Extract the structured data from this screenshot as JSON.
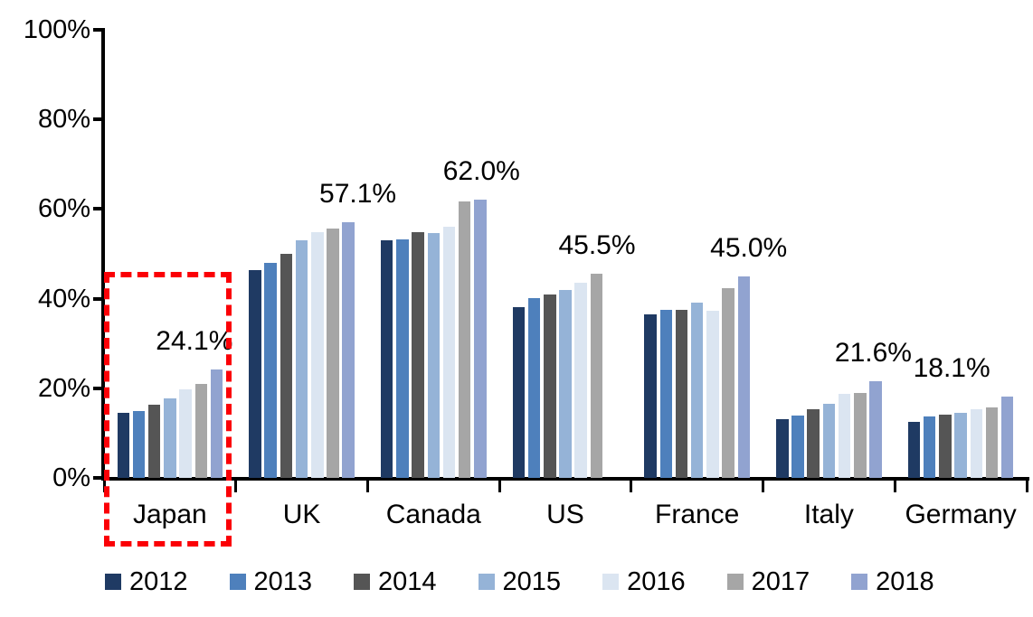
{
  "chart_data": {
    "type": "bar",
    "title": "",
    "xlabel": "",
    "ylabel": "",
    "categories": [
      "Japan",
      "UK",
      "Canada",
      "US",
      "France",
      "Italy",
      "Germany"
    ],
    "series": [
      {
        "name": "2012",
        "color": "#1f3a63",
        "values": [
          14.5,
          46.3,
          53.0,
          38.2,
          36.5,
          13.2,
          12.4
        ]
      },
      {
        "name": "2013",
        "color": "#4e80bc",
        "values": [
          14.9,
          47.9,
          53.3,
          40.1,
          37.6,
          14.0,
          13.8
        ]
      },
      {
        "name": "2014",
        "color": "#555555",
        "values": [
          16.4,
          50.0,
          54.8,
          41.0,
          37.5,
          15.3,
          14.2
        ]
      },
      {
        "name": "2015",
        "color": "#95b3d7",
        "values": [
          17.8,
          53.1,
          54.6,
          42.0,
          39.2,
          16.6,
          14.6
        ]
      },
      {
        "name": "2016",
        "color": "#dbe5f1",
        "values": [
          19.8,
          54.8,
          56.0,
          43.6,
          37.2,
          18.8,
          15.3
        ]
      },
      {
        "name": "2017",
        "color": "#a6a6a6",
        "values": [
          21.0,
          55.7,
          61.6,
          45.5,
          42.3,
          19.0,
          15.7
        ]
      },
      {
        "name": "2018",
        "color": "#91a3d0",
        "values": [
          24.1,
          57.1,
          62.0,
          null,
          45.0,
          21.6,
          18.1
        ]
      }
    ],
    "data_labels": [
      "24.1%",
      "57.1%",
      "62.0%",
      "45.5%",
      "45.0%",
      "21.6%",
      "18.1%"
    ],
    "y_ticks": [
      "0%",
      "20%",
      "40%",
      "60%",
      "80%",
      "100%"
    ],
    "y_tick_values": [
      0,
      20,
      40,
      60,
      80,
      100
    ],
    "ylim": [
      0,
      100
    ],
    "grid": false,
    "legend_position": "bottom",
    "legend_entries": [
      "2012",
      "2013",
      "2014",
      "2015",
      "2016",
      "2017",
      "2018"
    ],
    "highlight": {
      "target_category": "Japan",
      "style": "dashed-box",
      "color": "#fb0006"
    },
    "axis_color": "#000000",
    "background_color": "#ffffff"
  }
}
